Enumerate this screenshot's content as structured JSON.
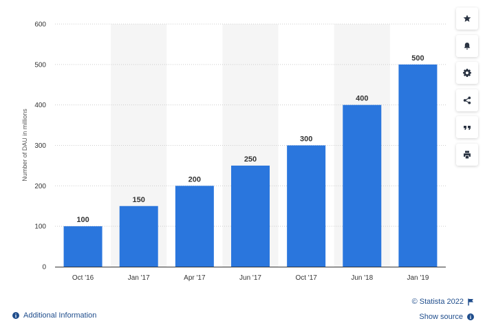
{
  "chart_data": {
    "type": "bar",
    "categories": [
      "Oct '16",
      "Jan '17",
      "Apr '17",
      "Jun '17",
      "Oct '17",
      "Jun '18",
      "Jan '19"
    ],
    "values": [
      100,
      150,
      200,
      250,
      300,
      400,
      500
    ],
    "title": "",
    "xlabel": "",
    "ylabel": "Number of DAU in millions",
    "ylim": [
      0,
      600
    ],
    "yticks": [
      0,
      100,
      200,
      300,
      400,
      500,
      600
    ],
    "grid": true,
    "data_labels": true,
    "bar_color": "#2a76dd"
  },
  "toolbar": {
    "buttons": [
      {
        "name": "favorite-button",
        "icon": "star-icon"
      },
      {
        "name": "notification-button",
        "icon": "bell-icon"
      },
      {
        "name": "settings-button",
        "icon": "gear-icon"
      },
      {
        "name": "share-button",
        "icon": "share-icon"
      },
      {
        "name": "cite-button",
        "icon": "quote-icon"
      },
      {
        "name": "print-button",
        "icon": "print-icon"
      }
    ]
  },
  "footer": {
    "credit": "© Statista 2022",
    "additional_info": "Additional Information",
    "show_source": "Show source",
    "link_color": "#1f4d8c"
  }
}
